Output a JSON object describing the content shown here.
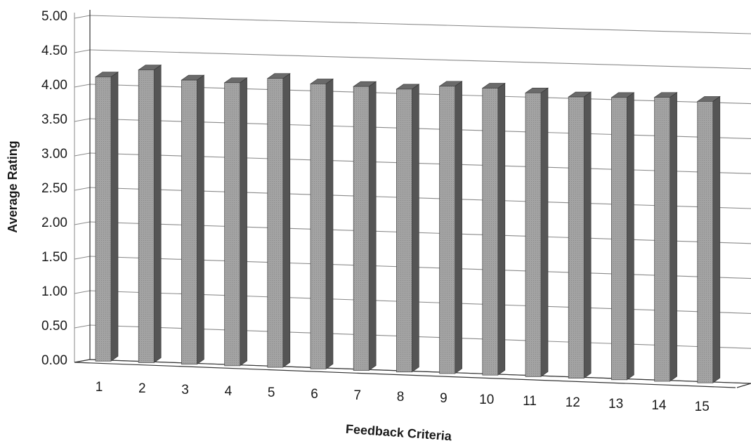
{
  "chart_data": {
    "type": "bar",
    "style": "3d-column",
    "title": "",
    "xlabel": "Feedback Criteria",
    "ylabel": "Average Rating",
    "categories": [
      "1",
      "2",
      "3",
      "4",
      "5",
      "6",
      "7",
      "8",
      "9",
      "10",
      "11",
      "12",
      "13",
      "14",
      "15"
    ],
    "values": [
      4.13,
      4.25,
      4.12,
      4.1,
      4.18,
      4.12,
      4.1,
      4.08,
      4.14,
      4.13,
      4.08,
      4.04,
      4.05,
      4.07,
      4.03
    ],
    "ylim": [
      0,
      5
    ],
    "yticks": [
      "0.00",
      "0.50",
      "1.00",
      "1.50",
      "2.00",
      "2.50",
      "3.00",
      "3.50",
      "4.00",
      "4.50",
      "5.00"
    ],
    "grid": true,
    "legend": "none",
    "colors": {
      "bar_front": "#9a9a9a",
      "bar_side": "#555555",
      "bar_top": "#6a6a6a",
      "grid": "#8a8a8a",
      "axis": "#333333"
    }
  }
}
